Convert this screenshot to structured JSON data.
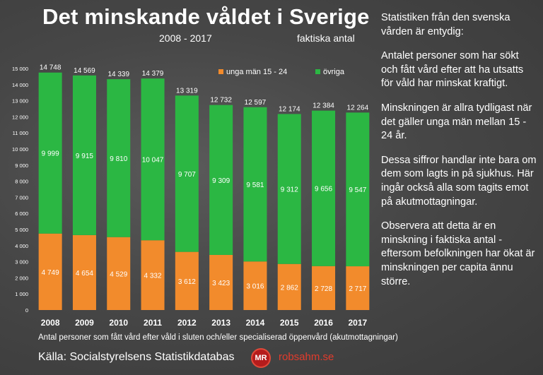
{
  "header": {
    "title": "Det minskande våldet i Sverige",
    "years": "2008 - 2017",
    "note": "faktiska antal"
  },
  "chart_data": {
    "type": "bar",
    "stacked": true,
    "categories": [
      "2008",
      "2009",
      "2010",
      "2011",
      "2012",
      "2013",
      "2014",
      "2015",
      "2016",
      "2017"
    ],
    "series": [
      {
        "name": "unga män 15 - 24",
        "color": "#f28b2c",
        "values": [
          4749,
          4654,
          4529,
          4332,
          3612,
          3423,
          3016,
          2862,
          2728,
          2717
        ],
        "value_labels": [
          "4 749",
          "4 654",
          "4 529",
          "4 332",
          "3 612",
          "3 423",
          "3 016",
          "2 862",
          "2 728",
          "2 717"
        ]
      },
      {
        "name": "övriga",
        "color": "#2bb743",
        "values": [
          9999,
          9915,
          9810,
          10047,
          9707,
          9309,
          9581,
          9312,
          9656,
          9547
        ],
        "value_labels": [
          "9 999",
          "9 915",
          "9 810",
          "10 047",
          "9 707",
          "9 309",
          "9 581",
          "9 312",
          "9 656",
          "9 547"
        ]
      }
    ],
    "totals": [
      14748,
      14569,
      14339,
      14379,
      13319,
      12732,
      12597,
      12174,
      12384,
      12264
    ],
    "total_labels": [
      "14 748",
      "14 569",
      "14 339",
      "14 379",
      "13 319",
      "12 732",
      "12 597",
      "12 174",
      "12 384",
      "12 264"
    ],
    "ylim": [
      0,
      15000
    ],
    "yticks": [
      0,
      1000,
      2000,
      3000,
      4000,
      5000,
      6000,
      7000,
      8000,
      9000,
      10000,
      11000,
      12000,
      13000,
      14000,
      15000
    ],
    "ytick_labels": [
      "0",
      "1 000",
      "2 000",
      "3 000",
      "4 000",
      "5 000",
      "6 000",
      "7 000",
      "8 000",
      "9 000",
      "10 000",
      "11 000",
      "12 000",
      "13 000",
      "14 000",
      "15 000"
    ],
    "xlabel": "Antal personer som fått vård efter våld i sluten och/eller specialiserad öppenvård (akutmottagningar)",
    "legend_position": "top-right",
    "grid": false
  },
  "footer": {
    "source": "Källa: Socialstyrelsens Statistikdatabas",
    "logo_text": "MR",
    "site": "robsahm.se"
  },
  "sidebar": {
    "paragraphs": [
      "Statistiken från den svenska vården är entydig:",
      "Antalet personer som har sökt och fått vård efter att ha utsatts för våld har minskat kraftigt.",
      "Minskningen är allra tydligast när det gäller unga män mellan 15 - 24 år.",
      "Dessa siffror handlar inte bara om dem som lagts in på sjukhus. Här ingår också alla som tagits emot på akutmottagningar.",
      "Observera att detta är en minskning i faktiska antal - eftersom befolkningen har ökat är minskningen per capita ännu större."
    ]
  }
}
